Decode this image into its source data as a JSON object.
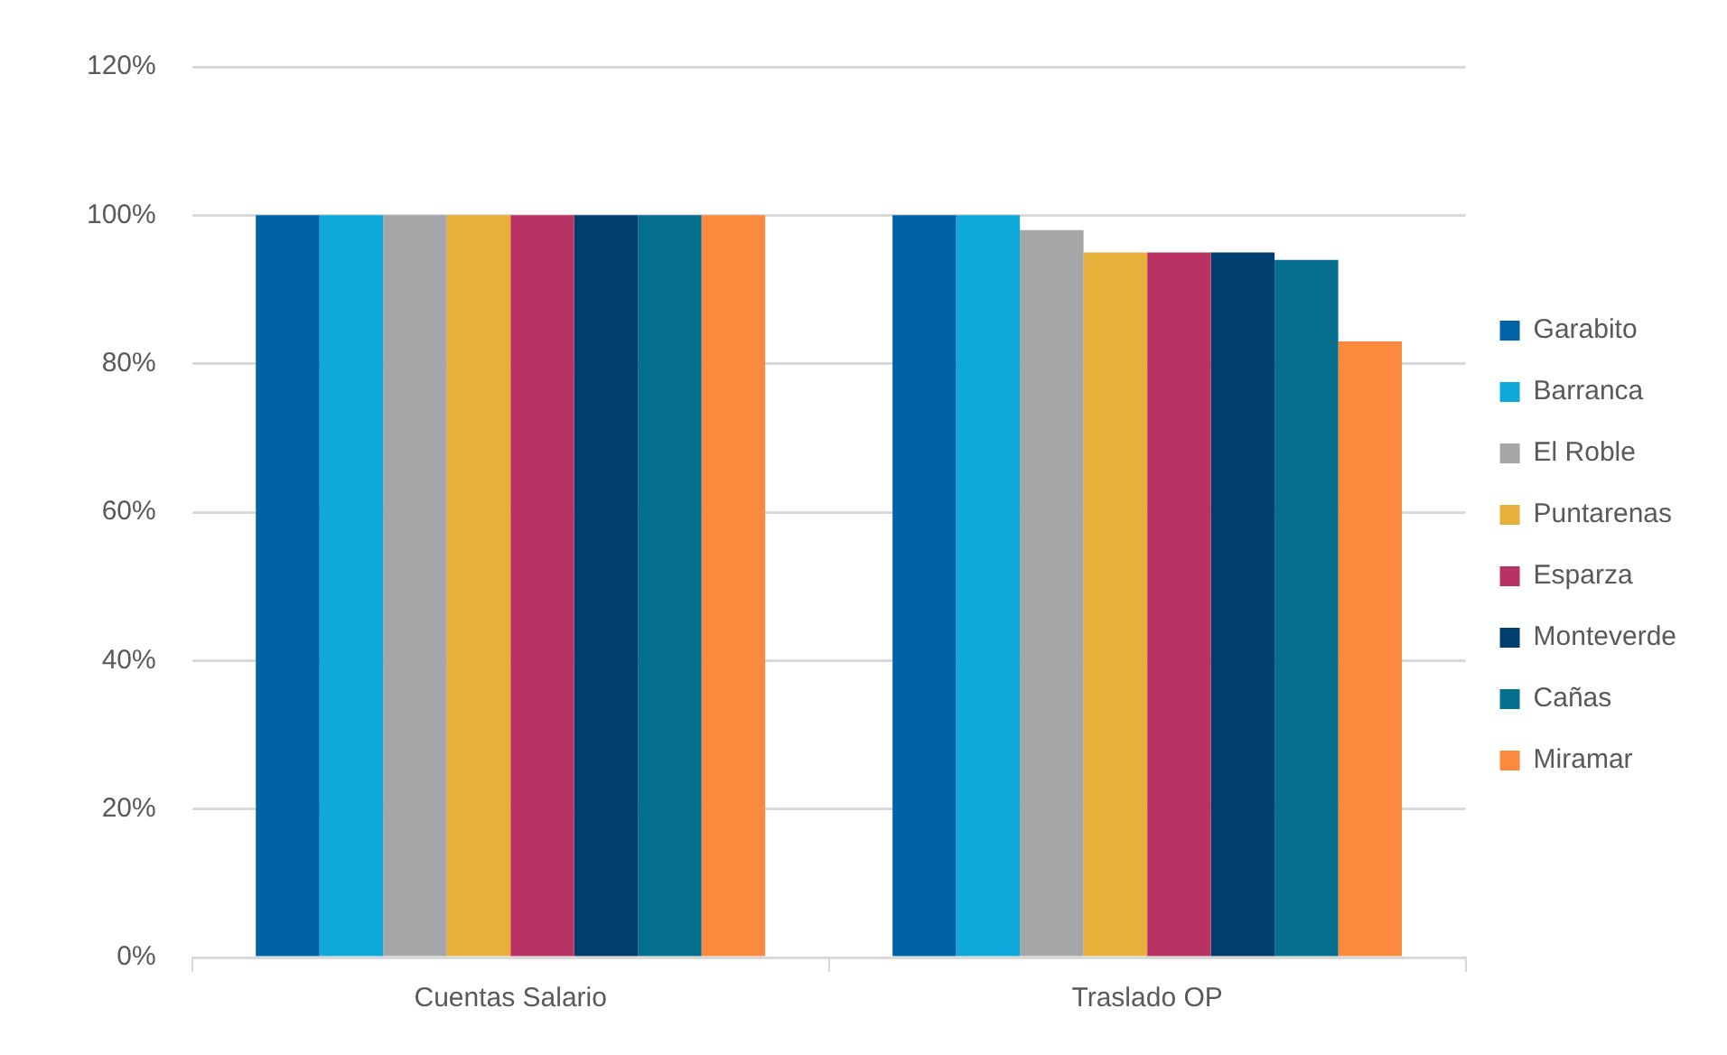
{
  "chart_data": {
    "type": "bar",
    "categories": [
      "Cuentas Salario",
      "Traslado OP"
    ],
    "series": [
      {
        "name": "Garabito",
        "color": "#0063a8",
        "values": [
          100,
          100
        ]
      },
      {
        "name": "Barranca",
        "color": "#0ea8da",
        "values": [
          100,
          100
        ]
      },
      {
        "name": "El Roble",
        "color": "#a5a6a8",
        "values": [
          100,
          98
        ]
      },
      {
        "name": "Puntarenas",
        "color": "#e6b03a",
        "values": [
          100,
          95
        ]
      },
      {
        "name": "Esparza",
        "color": "#b93264",
        "values": [
          100,
          95
        ]
      },
      {
        "name": "Monteverde",
        "color": "#003f6d",
        "values": [
          100,
          95
        ]
      },
      {
        "name": "Cañas",
        "color": "#066f8f",
        "values": [
          100,
          94
        ]
      },
      {
        "name": "Miramar",
        "color": "#fb8a3e",
        "values": [
          100,
          83
        ]
      }
    ],
    "ylim": [
      0,
      120
    ],
    "yticks": [
      {
        "value": 0,
        "label": "0%"
      },
      {
        "value": 20,
        "label": "20%"
      },
      {
        "value": 40,
        "label": "40%"
      },
      {
        "value": 60,
        "label": "60%"
      },
      {
        "value": 80,
        "label": "80%"
      },
      {
        "value": 100,
        "label": "100%"
      },
      {
        "value": 120,
        "label": "120%"
      }
    ],
    "grid": "y",
    "legend": "right"
  }
}
